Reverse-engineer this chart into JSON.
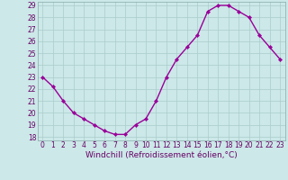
{
  "x": [
    0,
    1,
    2,
    3,
    4,
    5,
    6,
    7,
    8,
    9,
    10,
    11,
    12,
    13,
    14,
    15,
    16,
    17,
    18,
    19,
    20,
    21,
    22,
    23
  ],
  "y": [
    23,
    22.2,
    21.0,
    20.0,
    19.5,
    19.0,
    18.5,
    18.2,
    18.2,
    19.0,
    19.5,
    21.0,
    23.0,
    24.5,
    25.5,
    26.5,
    28.5,
    29.0,
    29.0,
    28.5,
    28.0,
    26.5,
    25.5,
    24.5
  ],
  "line_color": "#990099",
  "marker": "D",
  "marker_size": 2.2,
  "bg_color": "#cce8e8",
  "grid_color": "#aacccc",
  "xlabel": "Windchill (Refroidissement éolien,°C)",
  "xlabel_color": "#660066",
  "ylim_min": 17.7,
  "ylim_max": 29.3,
  "xlim_min": -0.5,
  "xlim_max": 23.5,
  "yticks": [
    18,
    19,
    20,
    21,
    22,
    23,
    24,
    25,
    26,
    27,
    28,
    29
  ],
  "xticks": [
    0,
    1,
    2,
    3,
    4,
    5,
    6,
    7,
    8,
    9,
    10,
    11,
    12,
    13,
    14,
    15,
    16,
    17,
    18,
    19,
    20,
    21,
    22,
    23
  ],
  "tick_label_color": "#660066",
  "tick_label_size": 5.5,
  "xlabel_size": 6.5,
  "linewidth": 1.0
}
